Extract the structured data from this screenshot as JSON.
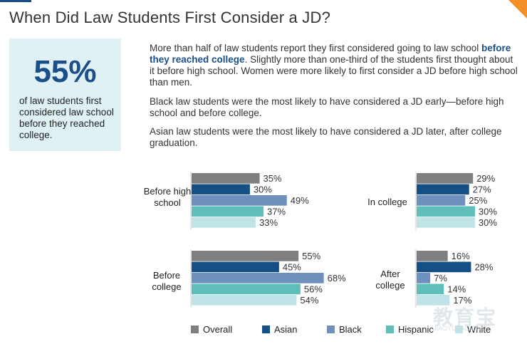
{
  "title": "When Did Law Students First Consider a JD?",
  "highlight": {
    "stat": "55%",
    "text": "of law students first considered law school before they reached college."
  },
  "paragraphs": {
    "p1_before": "More than half of law students report they first considered going to law school ",
    "p1_highlight": "before they reached college",
    "p1_after": ". Slightly more than one-third of the students first thought about it before high school. Women were more likely to first consider a JD before high school than men.",
    "p2": "Black law students were the most likely to have considered a JD early—before high school and before college.",
    "p3": "Asian law students were the most likely to have considered a JD later, after college graduation."
  },
  "colors": {
    "Overall": "#7f7f81",
    "Asian": "#154f85",
    "Black": "#6d90bd",
    "Hispanic": "#5fbfb8",
    "White": "#bfe3e6"
  },
  "watermark": {
    "main": "教育宝",
    "sub": "JIAOYUBAO.CN"
  },
  "chart_data": {
    "type": "bar",
    "orientation": "horizontal",
    "series_names": [
      "Overall",
      "Asian",
      "Black",
      "Hispanic",
      "White"
    ],
    "groups": [
      {
        "label": "Before high school",
        "values": [
          35,
          30,
          49,
          37,
          33
        ],
        "labels": [
          "35%",
          "30%",
          "49%",
          "37%",
          "33%"
        ]
      },
      {
        "label": "In college",
        "values": [
          29,
          27,
          25,
          30,
          30
        ],
        "labels": [
          "29%",
          "27%",
          "25%",
          "30%",
          "30%"
        ]
      },
      {
        "label": "Before college",
        "values": [
          55,
          45,
          68,
          56,
          54
        ],
        "labels": [
          "55%",
          "45%",
          "68%",
          "56%",
          "54%"
        ]
      },
      {
        "label": "After college",
        "values": [
          16,
          28,
          7,
          14,
          17
        ],
        "labels": [
          "16%",
          "28%",
          "7%",
          "14%",
          "17%"
        ]
      }
    ],
    "legend_position": "bottom",
    "grid": false
  }
}
